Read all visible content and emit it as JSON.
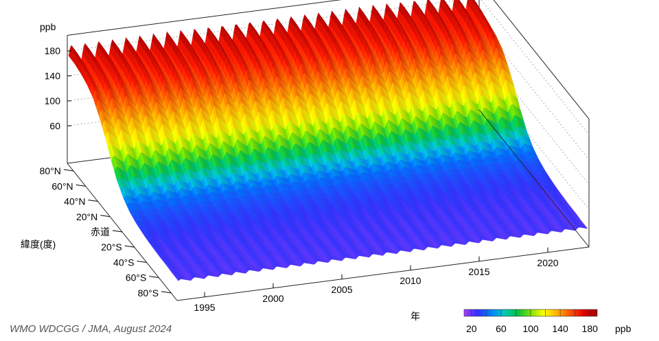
{
  "chart_data": {
    "type": "surface",
    "unit_label": "ppb",
    "x_axis": {
      "label": "年",
      "ticks": [
        1995,
        2000,
        2005,
        2010,
        2015,
        2020
      ],
      "range": [
        1993,
        2023
      ]
    },
    "y_axis": {
      "label": "緯度(度)",
      "ticks": [
        "80°N",
        "60°N",
        "40°N",
        "20°N",
        "赤道",
        "20°S",
        "40°S",
        "60°S",
        "80°S"
      ],
      "range": [
        -90,
        90
      ]
    },
    "z_axis": {
      "label": "ppb",
      "ticks": [
        60,
        100,
        140,
        180
      ],
      "range": [
        20,
        190
      ],
      "grid": true
    },
    "latitude_profile": {
      "latitudes": [
        90,
        80,
        70,
        60,
        50,
        40,
        30,
        20,
        10,
        0,
        -10,
        -20,
        -30,
        -40,
        -50,
        -60,
        -70,
        -80,
        -90
      ],
      "values_ppb": [
        178,
        177,
        174,
        168,
        158,
        140,
        118,
        92,
        70,
        55,
        45,
        40,
        37,
        35,
        34,
        33,
        33,
        32,
        32
      ]
    },
    "seasonal_amplitude_ppb": {
      "north": 30,
      "south": 5
    },
    "colorbar": {
      "ticks": [
        20,
        60,
        100,
        140,
        180
      ],
      "colors": [
        "#a63cff",
        "#3030ff",
        "#0080ff",
        "#00c8c0",
        "#00c040",
        "#80e000",
        "#ffff00",
        "#ffb000",
        "#ff5000",
        "#e00000",
        "#a00000"
      ]
    },
    "credit": "WMO WDCGG / JMA, August 2024"
  }
}
